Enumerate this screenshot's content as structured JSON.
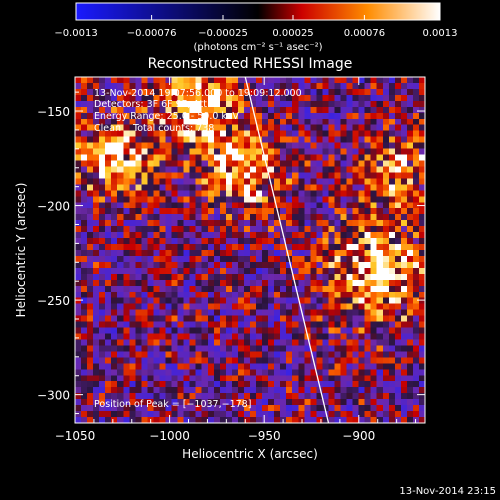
{
  "chart_data": {
    "type": "heatmap",
    "title": "Reconstructed RHESSI Image",
    "xlabel": "Heliocentric X (arcsec)",
    "ylabel": "Heliocentric Y (arcsec)",
    "xlim": [
      -1050,
      -865
    ],
    "ylim": [
      -315,
      -132
    ],
    "x_ticks": [
      -1050,
      -1000,
      -950,
      -900
    ],
    "x_tick_labels": [
      "−1050",
      "−1000",
      "−950",
      "−900"
    ],
    "y_ticks": [
      -150,
      -200,
      -250,
      -300
    ],
    "y_tick_labels": [
      "−150",
      "−200",
      "−250",
      "−300"
    ],
    "colorbar": {
      "range": [
        -0.0013,
        0.0013
      ],
      "ticks": [
        -0.0013,
        -0.00076,
        -0.00025,
        0.00025,
        0.00076,
        0.0013
      ],
      "tick_labels": [
        "−0.0013",
        "−0.00076",
        "−0.00025",
        "0.00025",
        "0.00076",
        "0.0013"
      ],
      "unit": "(photons cm⁻² s⁻¹ asec⁻²)"
    },
    "annotations": [
      "13-Nov-2014 19:07:56.000 to 19:09:12.000",
      "Detectors: 3F 6F 9F, Att 0",
      "Energy Range: 25.0 - 50.0 keV",
      "Clean    Total counts: 738",
      "Position of Peak = [−1037,−178]"
    ],
    "peak": {
      "x": -1037,
      "y": -178
    },
    "limb_line": [
      [
        -960,
        -132
      ],
      [
        -916,
        -315
      ]
    ],
    "colormap": [
      "#2020ff",
      "#000000",
      "#ff0000",
      "#ffa000",
      "#ffffff"
    ]
  },
  "footer_timestamp": "13-Nov-2014 23:15"
}
